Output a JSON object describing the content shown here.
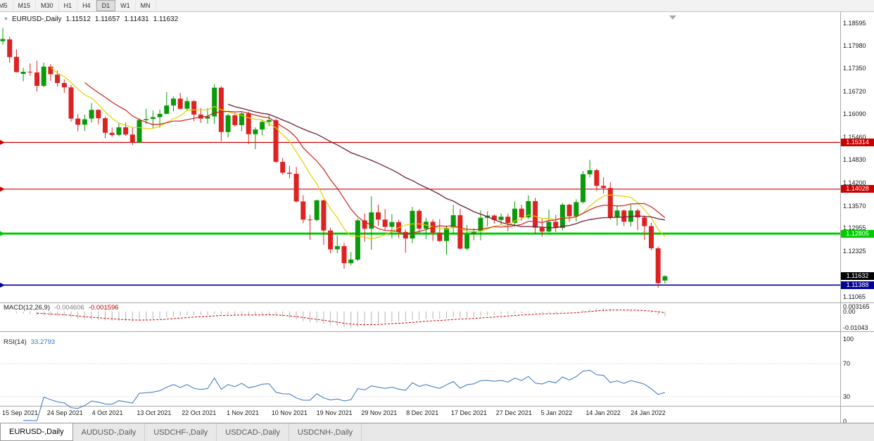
{
  "colors": {
    "bull": "#0a9a0a",
    "bear": "#dd2222",
    "ma_fast": "#e0d000",
    "ma_mid": "#cc2020",
    "ma_slow": "#702038",
    "macd_hist": "#b4b4b4",
    "macd_signal": "#cc0000",
    "rsi_line": "#3474c0",
    "separator": "#a8a8a8",
    "current_tag_bg": "#000000"
  },
  "toolbar": {
    "timeframes": [
      "M5",
      "M15",
      "M30",
      "H1",
      "H4",
      "D1",
      "W1",
      "MN"
    ],
    "active": "D1"
  },
  "header": {
    "symbol": "EURUSD-,Daily",
    "open": "1.11512",
    "high": "1.11657",
    "low": "1.11431",
    "close": "1.11632"
  },
  "price_axis_labels": [
    "1.18595",
    "1.17980",
    "1.17350",
    "1.16720",
    "1.16090",
    "1.15460",
    "1.14830",
    "1.14200",
    "1.13570",
    "1.12955",
    "1.12325",
    "1.11065"
  ],
  "macd_panel": {
    "name": "MACD(12,26,9)",
    "value_main": "-0.004606",
    "value_signal": "-0.001596",
    "axis_labels": [
      "0.003165",
      "0.00",
      "-0.01043"
    ]
  },
  "rsi_panel": {
    "name": "RSI(14)",
    "value": "33.2793",
    "axis_labels": [
      "100",
      "70",
      "30",
      "0"
    ]
  },
  "x_axis_labels": [
    "15 Sep 2021",
    "24 Sep 2021",
    "4 Oct 2021",
    "13 Oct 2021",
    "22 Oct 2021",
    "1 Nov 2021",
    "10 Nov 2021",
    "19 Nov 2021",
    "29 Nov 2021",
    "8 Dec 2021",
    "17 Dec 2021",
    "27 Dec 2021",
    "5 Jan 2022",
    "14 Jan 2022",
    "24 Jan 2022"
  ],
  "tabs": [
    "EURUSD-,Daily",
    "AUDUSD-,Daily",
    "USDCHF-,Daily",
    "USDCAD-,Daily",
    "USDCNH-,Daily"
  ],
  "active_tab": "EURUSD-,Daily",
  "chart_data": {
    "type": "candlestick",
    "symbol": "EURUSD",
    "timeframe": "Daily",
    "title": "EURUSD-,Daily 1.11512 1.11657 1.11431 1.11632",
    "ylim": [
      1.109,
      1.1891
    ],
    "indicators": [
      "MACD(12,26,9)",
      "RSI(14)"
    ],
    "moving_averages": [
      {
        "name": "fast",
        "period": 8
      },
      {
        "name": "mid",
        "period": 13
      },
      {
        "name": "slow",
        "period": 34
      }
    ],
    "levels": [
      {
        "price": 1.15314,
        "label": "1.15314",
        "color": "#cc0000",
        "width": 1.2
      },
      {
        "price": 1.14028,
        "label": "1.14028",
        "color": "#cc0000",
        "width": 1.2
      },
      {
        "price": 1.12805,
        "label": "1.12805",
        "color": "#00cc00",
        "width": 3
      },
      {
        "price": 1.11388,
        "label": "1.11388",
        "color": "#000096",
        "width": 1.6
      }
    ],
    "current_price": {
      "price": 1.11632,
      "label": "1.11632"
    },
    "candles_ohlc": [
      [
        1.181,
        1.1846,
        1.18,
        1.1816
      ],
      [
        1.1815,
        1.1822,
        1.175,
        1.1766
      ],
      [
        1.1767,
        1.1788,
        1.1724,
        1.1725
      ],
      [
        1.172,
        1.1737,
        1.17,
        1.1726
      ],
      [
        1.1726,
        1.1749,
        1.1715,
        1.1724
      ],
      [
        1.1724,
        1.1756,
        1.1672,
        1.1687
      ],
      [
        1.1687,
        1.1751,
        1.1683,
        1.174
      ],
      [
        1.174,
        1.1747,
        1.1701,
        1.1719
      ],
      [
        1.1718,
        1.1729,
        1.1685,
        1.1695
      ],
      [
        1.1695,
        1.1705,
        1.1668,
        1.1683
      ],
      [
        1.1683,
        1.169,
        1.1589,
        1.1597
      ],
      [
        1.1597,
        1.161,
        1.1562,
        1.158
      ],
      [
        1.158,
        1.1608,
        1.1563,
        1.1595
      ],
      [
        1.1597,
        1.164,
        1.1586,
        1.1621
      ],
      [
        1.1621,
        1.1623,
        1.1581,
        1.1598
      ],
      [
        1.1598,
        1.1602,
        1.1543,
        1.1558
      ],
      [
        1.1558,
        1.1572,
        1.1547,
        1.1552
      ],
      [
        1.1552,
        1.1586,
        1.1548,
        1.1573
      ],
      [
        1.1573,
        1.1586,
        1.1549,
        1.1553
      ],
      [
        1.1553,
        1.1572,
        1.1524,
        1.1531
      ],
      [
        1.1531,
        1.1597,
        1.1529,
        1.1593
      ],
      [
        1.1593,
        1.1624,
        1.1582,
        1.1596
      ],
      [
        1.1596,
        1.1619,
        1.1571,
        1.1601
      ],
      [
        1.1601,
        1.1622,
        1.1572,
        1.161
      ],
      [
        1.161,
        1.167,
        1.1609,
        1.1633
      ],
      [
        1.1633,
        1.1658,
        1.1617,
        1.1652
      ],
      [
        1.1652,
        1.1668,
        1.1622,
        1.1624
      ],
      [
        1.1624,
        1.1656,
        1.162,
        1.1645
      ],
      [
        1.1645,
        1.1648,
        1.159,
        1.1608
      ],
      [
        1.1608,
        1.1626,
        1.1585,
        1.1597
      ],
      [
        1.1597,
        1.1626,
        1.1583,
        1.1603
      ],
      [
        1.1603,
        1.1692,
        1.1582,
        1.1682
      ],
      [
        1.1682,
        1.1686,
        1.1535,
        1.156
      ],
      [
        1.156,
        1.161,
        1.1545,
        1.1606
      ],
      [
        1.1606,
        1.1613,
        1.1575,
        1.1579
      ],
      [
        1.1579,
        1.1616,
        1.1562,
        1.1611
      ],
      [
        1.1611,
        1.1616,
        1.1527,
        1.1554
      ],
      [
        1.1554,
        1.1573,
        1.1513,
        1.1567
      ],
      [
        1.1567,
        1.1593,
        1.1551,
        1.1588
      ],
      [
        1.1588,
        1.1609,
        1.1576,
        1.1593
      ],
      [
        1.1593,
        1.1596,
        1.1475,
        1.1478
      ],
      [
        1.1478,
        1.1489,
        1.1443,
        1.1448
      ],
      [
        1.1448,
        1.1467,
        1.1433,
        1.1445
      ],
      [
        1.1445,
        1.1464,
        1.1366,
        1.1369
      ],
      [
        1.1369,
        1.1386,
        1.1309,
        1.1319
      ],
      [
        1.1319,
        1.1332,
        1.1263,
        1.1318
      ],
      [
        1.1318,
        1.1374,
        1.1314,
        1.1372
      ],
      [
        1.1372,
        1.1374,
        1.125,
        1.1289
      ],
      [
        1.1289,
        1.1297,
        1.1226,
        1.1237
      ],
      [
        1.1237,
        1.1275,
        1.1226,
        1.1246
      ],
      [
        1.1246,
        1.1255,
        1.1184,
        1.1199
      ],
      [
        1.1199,
        1.123,
        1.1193,
        1.1209
      ],
      [
        1.1209,
        1.1322,
        1.1205,
        1.1317
      ],
      [
        1.1317,
        1.1336,
        1.1258,
        1.1294
      ],
      [
        1.1294,
        1.1383,
        1.1236,
        1.1339
      ],
      [
        1.1339,
        1.136,
        1.1302,
        1.1319
      ],
      [
        1.1319,
        1.1348,
        1.1288,
        1.1299
      ],
      [
        1.1299,
        1.1334,
        1.1267,
        1.1312
      ],
      [
        1.1312,
        1.1319,
        1.1268,
        1.1285
      ],
      [
        1.1285,
        1.1292,
        1.1228,
        1.1267
      ],
      [
        1.1267,
        1.1354,
        1.1254,
        1.1343
      ],
      [
        1.1343,
        1.1348,
        1.128,
        1.1294
      ],
      [
        1.1294,
        1.1324,
        1.1265,
        1.1313
      ],
      [
        1.1313,
        1.132,
        1.126,
        1.1283
      ],
      [
        1.1283,
        1.132,
        1.1258,
        1.126
      ],
      [
        1.126,
        1.1303,
        1.1222,
        1.1296
      ],
      [
        1.1296,
        1.136,
        1.128,
        1.1331
      ],
      [
        1.1331,
        1.1349,
        1.1236,
        1.1239
      ],
      [
        1.1239,
        1.1304,
        1.1234,
        1.1278
      ],
      [
        1.1278,
        1.1295,
        1.1262,
        1.1287
      ],
      [
        1.1287,
        1.1344,
        1.1262,
        1.1324
      ],
      [
        1.1324,
        1.1342,
        1.13,
        1.133
      ],
      [
        1.133,
        1.1333,
        1.1308,
        1.1318
      ],
      [
        1.1318,
        1.1336,
        1.1304,
        1.1327
      ],
      [
        1.1327,
        1.1335,
        1.1287,
        1.131
      ],
      [
        1.131,
        1.1369,
        1.13,
        1.1349
      ],
      [
        1.1349,
        1.136,
        1.1316,
        1.1325
      ],
      [
        1.1325,
        1.1386,
        1.132,
        1.137
      ],
      [
        1.137,
        1.1379,
        1.1279,
        1.1297
      ],
      [
        1.1297,
        1.1323,
        1.1272,
        1.1286
      ],
      [
        1.1286,
        1.1347,
        1.1284,
        1.1313
      ],
      [
        1.1313,
        1.1332,
        1.1285,
        1.1296
      ],
      [
        1.1296,
        1.1365,
        1.1289,
        1.136
      ],
      [
        1.136,
        1.1362,
        1.1313,
        1.1328
      ],
      [
        1.1328,
        1.1375,
        1.1314,
        1.1367
      ],
      [
        1.1367,
        1.1453,
        1.1363,
        1.1444
      ],
      [
        1.1444,
        1.1483,
        1.1435,
        1.1455
      ],
      [
        1.1455,
        1.1459,
        1.1398,
        1.1412
      ],
      [
        1.1412,
        1.1435,
        1.1391,
        1.1406
      ],
      [
        1.1406,
        1.1422,
        1.1319,
        1.1325
      ],
      [
        1.1325,
        1.1357,
        1.1302,
        1.1344
      ],
      [
        1.1344,
        1.1347,
        1.1301,
        1.1313
      ],
      [
        1.1313,
        1.136,
        1.13,
        1.1344
      ],
      [
        1.1344,
        1.1349,
        1.129,
        1.1325
      ],
      [
        1.1325,
        1.133,
        1.1263,
        1.1301
      ],
      [
        1.1301,
        1.131,
        1.1235,
        1.124
      ],
      [
        1.124,
        1.1245,
        1.1131,
        1.1144
      ],
      [
        1.11512,
        1.11657,
        1.11431,
        1.11632
      ]
    ]
  }
}
